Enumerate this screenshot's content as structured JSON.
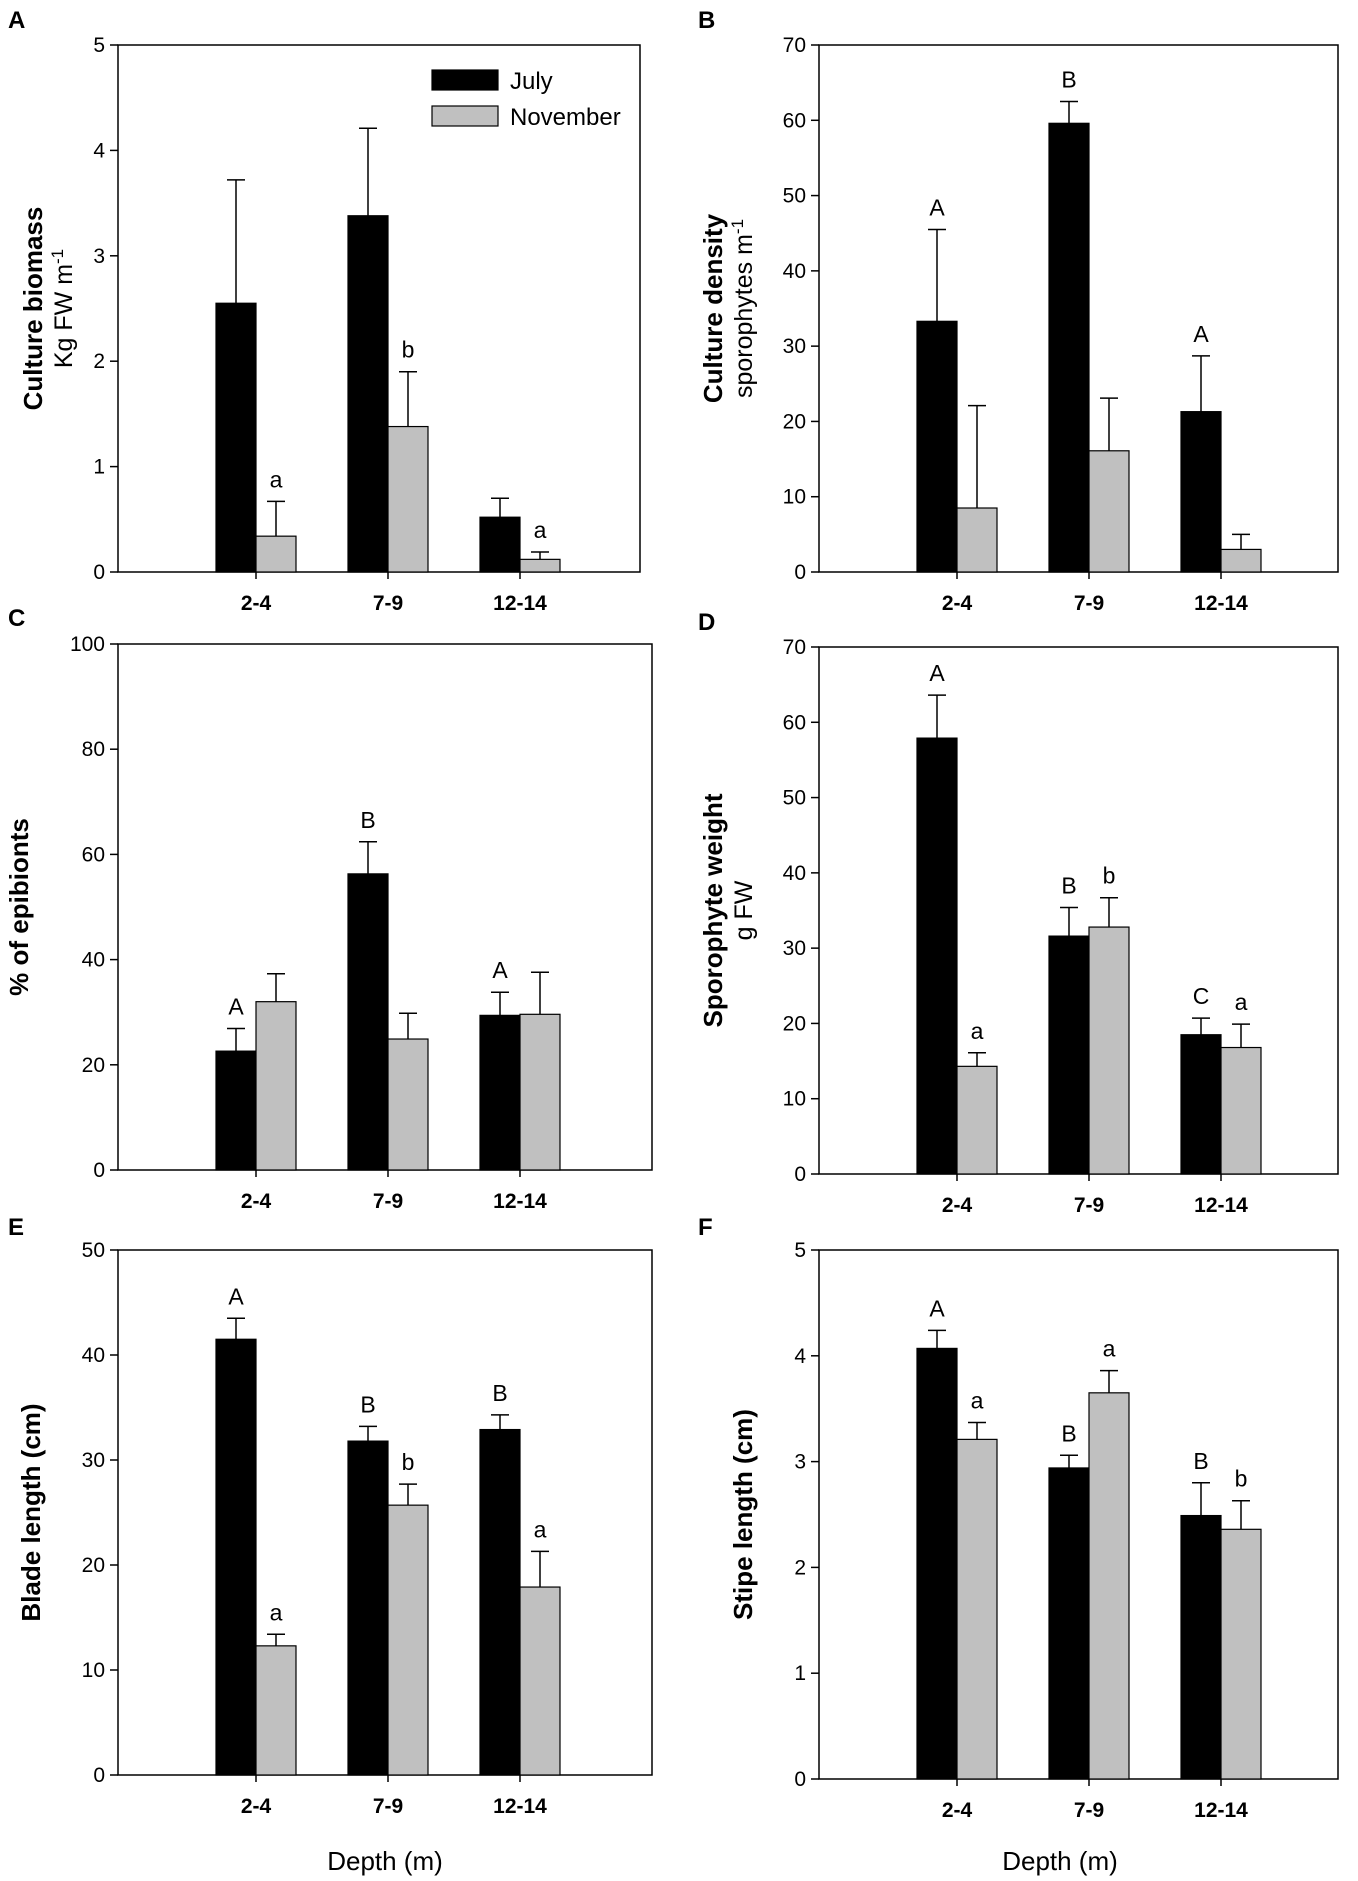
{
  "legend": {
    "july": "July",
    "november": "November"
  },
  "colors": {
    "july": "#000000",
    "november": "#c0c0c0",
    "axis": "#000000"
  },
  "chart_data": [
    {
      "panel": "A",
      "type": "bar",
      "categories": [
        "2-4",
        "7-9",
        "12-14"
      ],
      "ylabel_bold": "Culture biomass",
      "ylabel_unit": "Kg FW m",
      "ylabel_sup": "-1",
      "xlabel": "",
      "ylim": [
        0,
        5
      ],
      "yticks": [
        0,
        1,
        2,
        3,
        4,
        5
      ],
      "series": [
        {
          "name": "July",
          "values": [
            2.55,
            3.38,
            0.52
          ],
          "errors": [
            1.17,
            0.83,
            0.18
          ],
          "sig": [
            "",
            "",
            ""
          ]
        },
        {
          "name": "November",
          "values": [
            0.34,
            1.38,
            0.12
          ],
          "errors": [
            0.33,
            0.52,
            0.07
          ],
          "sig": [
            "a",
            "b",
            "a"
          ]
        }
      ],
      "legend_position": "top-right"
    },
    {
      "panel": "B",
      "type": "bar",
      "categories": [
        "2-4",
        "7-9",
        "12-14"
      ],
      "ylabel_bold": "Culture density",
      "ylabel_unit": "sporophytes m",
      "ylabel_sup": "-1",
      "xlabel": "",
      "ylim": [
        0,
        70
      ],
      "yticks": [
        0,
        10,
        20,
        30,
        40,
        50,
        60,
        70
      ],
      "series": [
        {
          "name": "July",
          "values": [
            33.3,
            59.6,
            21.3
          ],
          "errors": [
            12.2,
            2.9,
            7.4
          ],
          "sig": [
            "A",
            "B",
            "A"
          ]
        },
        {
          "name": "November",
          "values": [
            8.5,
            16.1,
            3.0
          ],
          "errors": [
            13.6,
            7.0,
            2.0
          ],
          "sig": [
            "",
            "",
            ""
          ]
        }
      ]
    },
    {
      "panel": "C",
      "type": "bar",
      "categories": [
        "2-4",
        "7-9",
        "12-14"
      ],
      "ylabel_bold": "% of epibionts",
      "ylabel_unit": "",
      "ylabel_sup": "",
      "xlabel": "",
      "ylim": [
        0,
        100
      ],
      "yticks": [
        0,
        20,
        40,
        60,
        80,
        100
      ],
      "series": [
        {
          "name": "July",
          "values": [
            22.6,
            56.3,
            29.4
          ],
          "errors": [
            4.3,
            6.1,
            4.4
          ],
          "sig": [
            "A",
            "B",
            "A"
          ]
        },
        {
          "name": "November",
          "values": [
            32.0,
            24.9,
            29.6
          ],
          "errors": [
            5.3,
            4.9,
            8.0
          ],
          "sig": [
            "",
            "",
            ""
          ]
        }
      ]
    },
    {
      "panel": "D",
      "type": "bar",
      "categories": [
        "2-4",
        "7-9",
        "12-14"
      ],
      "ylabel_bold": "Sporophyte weight",
      "ylabel_unit": "g FW",
      "ylabel_sup": "",
      "xlabel": "",
      "ylim": [
        0,
        70
      ],
      "yticks": [
        0,
        10,
        20,
        30,
        40,
        50,
        60,
        70
      ],
      "series": [
        {
          "name": "July",
          "values": [
            57.9,
            31.6,
            18.5
          ],
          "errors": [
            5.7,
            3.8,
            2.2
          ],
          "sig": [
            "A",
            "B",
            "C"
          ]
        },
        {
          "name": "November",
          "values": [
            14.3,
            32.8,
            16.8
          ],
          "errors": [
            1.8,
            3.9,
            3.1
          ],
          "sig": [
            "a",
            "b",
            "a"
          ]
        }
      ]
    },
    {
      "panel": "E",
      "type": "bar",
      "categories": [
        "2-4",
        "7-9",
        "12-14"
      ],
      "ylabel_bold": "Blade length (cm)",
      "ylabel_unit": "",
      "ylabel_sup": "",
      "xlabel": "Depth (m)",
      "ylim": [
        0,
        50
      ],
      "yticks": [
        0,
        10,
        20,
        30,
        40,
        50
      ],
      "series": [
        {
          "name": "July",
          "values": [
            41.5,
            31.8,
            32.9
          ],
          "errors": [
            2.0,
            1.4,
            1.4
          ],
          "sig": [
            "A",
            "B",
            "B"
          ]
        },
        {
          "name": "November",
          "values": [
            12.3,
            25.7,
            17.9
          ],
          "errors": [
            1.1,
            2.0,
            3.4
          ],
          "sig": [
            "a",
            "b",
            "a"
          ]
        }
      ]
    },
    {
      "panel": "F",
      "type": "bar",
      "categories": [
        "2-4",
        "7-9",
        "12-14"
      ],
      "ylabel_bold": "Stipe length (cm)",
      "ylabel_unit": "",
      "ylabel_sup": "",
      "xlabel": "Depth (m)",
      "ylim": [
        0,
        5
      ],
      "yticks": [
        0,
        1,
        2,
        3,
        4,
        5
      ],
      "series": [
        {
          "name": "July",
          "values": [
            4.07,
            2.94,
            2.49
          ],
          "errors": [
            0.17,
            0.12,
            0.31
          ],
          "sig": [
            "A",
            "B",
            "B"
          ]
        },
        {
          "name": "November",
          "values": [
            3.21,
            3.65,
            2.36
          ],
          "errors": [
            0.16,
            0.21,
            0.27
          ],
          "sig": [
            "a",
            "a",
            "b"
          ]
        }
      ]
    }
  ]
}
